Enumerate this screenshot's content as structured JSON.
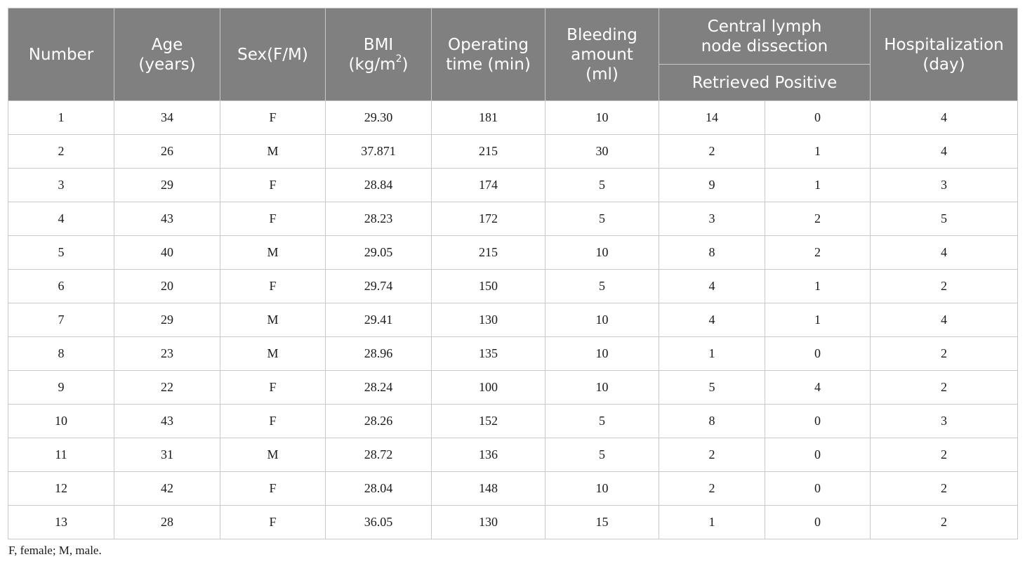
{
  "header": {
    "number": "Number",
    "age_line1": "Age",
    "age_line2": "(years)",
    "sex": "Sex(F/M)",
    "bmi_line1": "BMI",
    "bmi_line2_pre": "(kg/m",
    "bmi_sup": "2",
    "bmi_line2_post": ")",
    "op_line1": "Operating",
    "op_line2": "time (min)",
    "bleed_line1": "Bleeding",
    "bleed_line2": "amount",
    "bleed_line3": "(ml)",
    "central_line1": "Central lymph",
    "central_line2": "node dissection",
    "retrieved_positive": "Retrieved Positive",
    "hosp_line1": "Hospitalization",
    "hosp_line2": "(day)"
  },
  "rows": [
    [
      "1",
      "34",
      "F",
      "29.30",
      "181",
      "10",
      "14",
      "0",
      "4"
    ],
    [
      "2",
      "26",
      "M",
      "37.871",
      "215",
      "30",
      "2",
      "1",
      "4"
    ],
    [
      "3",
      "29",
      "F",
      "28.84",
      "174",
      "5",
      "9",
      "1",
      "3"
    ],
    [
      "4",
      "43",
      "F",
      "28.23",
      "172",
      "5",
      "3",
      "2",
      "5"
    ],
    [
      "5",
      "40",
      "M",
      "29.05",
      "215",
      "10",
      "8",
      "2",
      "4"
    ],
    [
      "6",
      "20",
      "F",
      "29.74",
      "150",
      "5",
      "4",
      "1",
      "2"
    ],
    [
      "7",
      "29",
      "M",
      "29.41",
      "130",
      "10",
      "4",
      "1",
      "4"
    ],
    [
      "8",
      "23",
      "M",
      "28.96",
      "135",
      "10",
      "1",
      "0",
      "2"
    ],
    [
      "9",
      "22",
      "F",
      "28.24",
      "100",
      "10",
      "5",
      "4",
      "2"
    ],
    [
      "10",
      "43",
      "F",
      "28.26",
      "152",
      "5",
      "8",
      "0",
      "3"
    ],
    [
      "11",
      "31",
      "M",
      "28.72",
      "136",
      "5",
      "2",
      "0",
      "2"
    ],
    [
      "12",
      "42",
      "F",
      "28.04",
      "148",
      "10",
      "2",
      "0",
      "2"
    ],
    [
      "13",
      "28",
      "F",
      "36.05",
      "130",
      "15",
      "1",
      "0",
      "2"
    ]
  ],
  "footnote": "F, female; M, male."
}
